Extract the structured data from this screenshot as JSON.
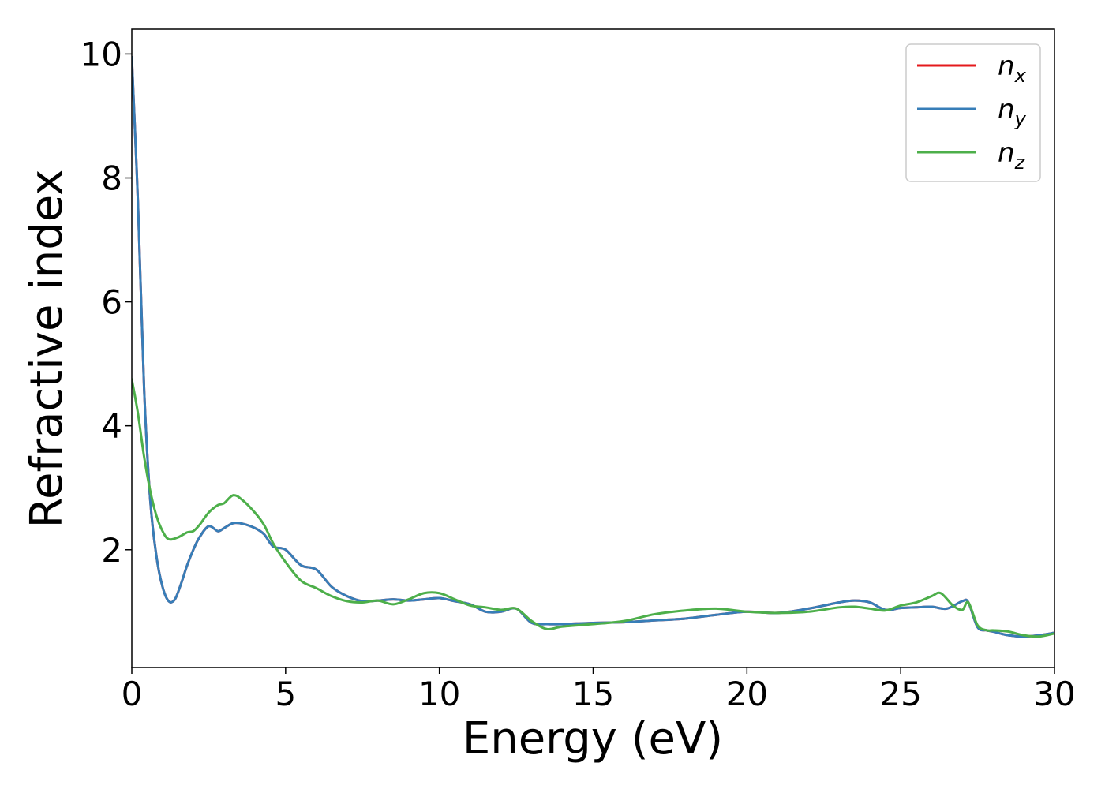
{
  "chart_data": {
    "type": "line",
    "title": "",
    "xlabel": "Energy (eV)",
    "ylabel": "Refractive index",
    "xlim": [
      0,
      30
    ],
    "ylim": [
      0.1,
      10.4
    ],
    "xticks": [
      0,
      5,
      10,
      15,
      20,
      25,
      30
    ],
    "xtick_labels": [
      "0",
      "5",
      "10",
      "15",
      "20",
      "25",
      "30"
    ],
    "yticks": [
      2,
      4,
      6,
      8,
      10
    ],
    "ytick_labels": [
      "2",
      "4",
      "6",
      "8",
      "10"
    ],
    "grid": false,
    "legend_position": "top-right",
    "series": [
      {
        "name": "n_x",
        "name_main": "n",
        "name_sub": "x",
        "color": "#e41a1c",
        "x": [
          0,
          0.2,
          0.4,
          0.6,
          0.8,
          1.0,
          1.2,
          1.4,
          1.6,
          1.8,
          2.0,
          2.2,
          2.5,
          2.8,
          3.0,
          3.3,
          3.6,
          4.0,
          4.3,
          4.6,
          5.0,
          5.5,
          6.0,
          6.5,
          7.0,
          7.5,
          8.0,
          8.5,
          9.0,
          9.5,
          10.0,
          10.5,
          11.0,
          11.5,
          12.0,
          12.5,
          13.0,
          13.5,
          14.0,
          15.0,
          16.0,
          17.0,
          18.0,
          19.0,
          20.0,
          21.0,
          22.0,
          23.0,
          23.5,
          24.0,
          24.5,
          25.0,
          25.5,
          26.0,
          26.5,
          27.0,
          27.2,
          27.5,
          27.8,
          28.0,
          28.5,
          29.0,
          29.5,
          30.0
        ],
        "y": [
          9.95,
          7.6,
          4.6,
          2.8,
          1.9,
          1.4,
          1.17,
          1.2,
          1.45,
          1.75,
          2.0,
          2.2,
          2.38,
          2.3,
          2.35,
          2.43,
          2.42,
          2.35,
          2.25,
          2.05,
          2.0,
          1.75,
          1.68,
          1.4,
          1.25,
          1.17,
          1.18,
          1.2,
          1.18,
          1.2,
          1.22,
          1.17,
          1.12,
          1.0,
          1.0,
          1.05,
          0.82,
          0.8,
          0.8,
          0.82,
          0.83,
          0.86,
          0.89,
          0.95,
          1.0,
          0.98,
          1.05,
          1.15,
          1.18,
          1.15,
          1.03,
          1.06,
          1.07,
          1.08,
          1.05,
          1.17,
          1.15,
          0.75,
          0.7,
          0.68,
          0.62,
          0.6,
          0.62,
          0.66
        ]
      },
      {
        "name": "n_y",
        "name_main": "n",
        "name_sub": "y",
        "color": "#377eb8",
        "x": [
          0,
          0.2,
          0.4,
          0.6,
          0.8,
          1.0,
          1.2,
          1.4,
          1.6,
          1.8,
          2.0,
          2.2,
          2.5,
          2.8,
          3.0,
          3.3,
          3.6,
          4.0,
          4.3,
          4.6,
          5.0,
          5.5,
          6.0,
          6.5,
          7.0,
          7.5,
          8.0,
          8.5,
          9.0,
          9.5,
          10.0,
          10.5,
          11.0,
          11.5,
          12.0,
          12.5,
          13.0,
          13.5,
          14.0,
          15.0,
          16.0,
          17.0,
          18.0,
          19.0,
          20.0,
          21.0,
          22.0,
          23.0,
          23.5,
          24.0,
          24.5,
          25.0,
          25.5,
          26.0,
          26.5,
          27.0,
          27.2,
          27.5,
          27.8,
          28.0,
          28.5,
          29.0,
          29.5,
          30.0
        ],
        "y": [
          9.95,
          7.6,
          4.6,
          2.8,
          1.9,
          1.4,
          1.17,
          1.2,
          1.45,
          1.75,
          2.0,
          2.2,
          2.38,
          2.3,
          2.35,
          2.43,
          2.42,
          2.35,
          2.25,
          2.05,
          2.0,
          1.75,
          1.68,
          1.4,
          1.25,
          1.17,
          1.18,
          1.2,
          1.18,
          1.2,
          1.22,
          1.17,
          1.12,
          1.0,
          1.0,
          1.05,
          0.82,
          0.8,
          0.8,
          0.82,
          0.83,
          0.86,
          0.89,
          0.95,
          1.0,
          0.98,
          1.05,
          1.15,
          1.18,
          1.15,
          1.03,
          1.06,
          1.07,
          1.08,
          1.05,
          1.17,
          1.15,
          0.75,
          0.7,
          0.68,
          0.62,
          0.6,
          0.62,
          0.66
        ]
      },
      {
        "name": "n_z",
        "name_main": "n",
        "name_sub": "z",
        "color": "#4daf4a",
        "x": [
          0,
          0.2,
          0.4,
          0.6,
          0.8,
          1.0,
          1.2,
          1.5,
          1.8,
          2.0,
          2.2,
          2.5,
          2.8,
          3.0,
          3.3,
          3.6,
          4.0,
          4.3,
          4.6,
          5.0,
          5.5,
          6.0,
          6.5,
          7.0,
          7.5,
          8.0,
          8.5,
          9.0,
          9.5,
          10.0,
          10.5,
          11.0,
          11.5,
          12.0,
          12.5,
          13.0,
          13.5,
          14.0,
          15.0,
          16.0,
          17.0,
          18.0,
          19.0,
          20.0,
          21.0,
          22.0,
          23.0,
          23.5,
          24.0,
          24.5,
          25.0,
          25.5,
          26.0,
          26.3,
          26.7,
          27.0,
          27.2,
          27.5,
          27.8,
          28.0,
          28.5,
          29.0,
          29.5,
          30.0
        ],
        "y": [
          4.75,
          4.2,
          3.5,
          2.95,
          2.55,
          2.3,
          2.17,
          2.2,
          2.28,
          2.3,
          2.4,
          2.6,
          2.72,
          2.75,
          2.88,
          2.8,
          2.6,
          2.4,
          2.1,
          1.8,
          1.5,
          1.38,
          1.25,
          1.17,
          1.15,
          1.18,
          1.12,
          1.2,
          1.3,
          1.3,
          1.2,
          1.1,
          1.07,
          1.03,
          1.05,
          0.85,
          0.72,
          0.76,
          0.8,
          0.85,
          0.96,
          1.02,
          1.05,
          1.0,
          0.98,
          1.0,
          1.07,
          1.08,
          1.05,
          1.02,
          1.1,
          1.15,
          1.25,
          1.3,
          1.1,
          1.03,
          1.15,
          0.78,
          0.7,
          0.7,
          0.68,
          0.62,
          0.6,
          0.65
        ]
      }
    ]
  }
}
